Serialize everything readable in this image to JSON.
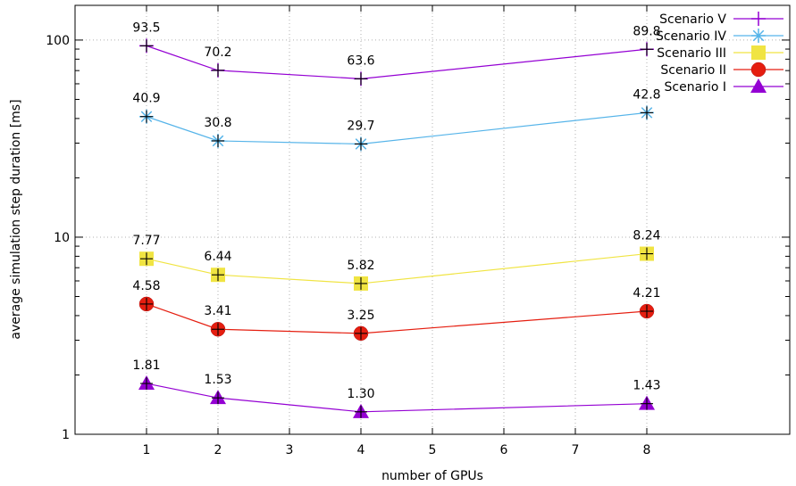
{
  "chart_data": {
    "type": "line",
    "xlabel": "number of GPUs",
    "ylabel": "average simulation step duration [ms]",
    "y_scale": "log",
    "ylim": [
      1,
      150
    ],
    "xlim": [
      0,
      10
    ],
    "x_ticks": [
      1,
      2,
      3,
      4,
      5,
      6,
      7,
      8
    ],
    "y_ticks": [
      1,
      10,
      100
    ],
    "grid": true,
    "legend_position": "top-right",
    "x": [
      1,
      2,
      4,
      8
    ],
    "series": [
      {
        "name": "Scenario V",
        "values": [
          93.5,
          70.2,
          63.6,
          89.8
        ],
        "labels": [
          "93.5",
          "70.2",
          "63.6",
          "89.8"
        ],
        "color": "#9400d3",
        "marker": "plus"
      },
      {
        "name": "Scenario IV",
        "values": [
          40.9,
          30.8,
          29.7,
          42.8
        ],
        "labels": [
          "40.9",
          "30.8",
          "29.7",
          "42.8"
        ],
        "color": "#56b4e9",
        "marker": "asterisk"
      },
      {
        "name": "Scenario III",
        "values": [
          7.77,
          6.44,
          5.82,
          8.24
        ],
        "labels": [
          "7.77",
          "6.44",
          "5.82",
          "8.24"
        ],
        "color": "#f0e442",
        "marker": "square"
      },
      {
        "name": "Scenario II",
        "values": [
          4.58,
          3.41,
          3.25,
          4.21
        ],
        "labels": [
          "4.58",
          "3.41",
          "3.25",
          "4.21"
        ],
        "color": "#e51e10",
        "marker": "circle"
      },
      {
        "name": "Scenario I",
        "values": [
          1.81,
          1.53,
          1.3,
          1.43
        ],
        "labels": [
          "1.81",
          "1.53",
          "1.30",
          "1.43"
        ],
        "color": "#9400d3",
        "marker": "triangle"
      }
    ]
  }
}
